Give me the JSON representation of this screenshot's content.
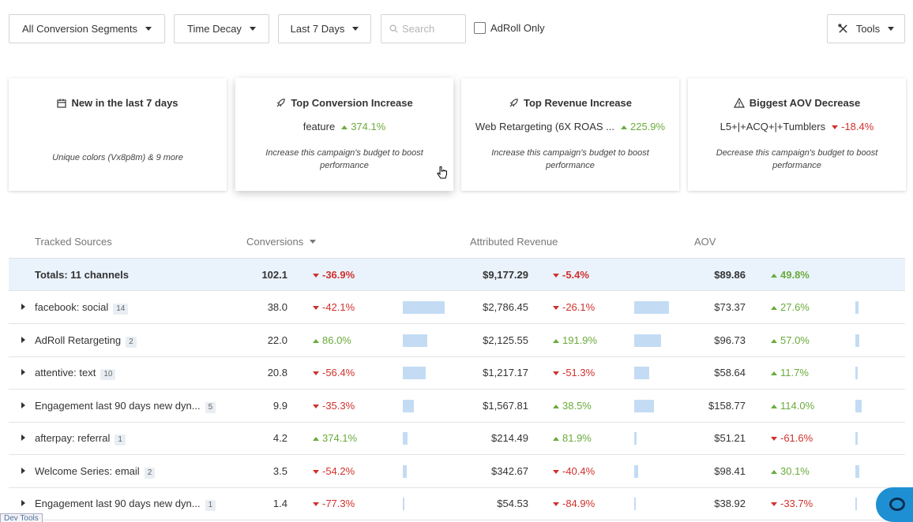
{
  "toolbar": {
    "segments": "All Conversion Segments",
    "model": "Time Decay",
    "range": "Last 7 Days",
    "search_placeholder": "Search",
    "adroll_only": "AdRoll Only",
    "tools": "Tools"
  },
  "cards": [
    {
      "title": "New in the last 7 days",
      "icon": "calendar-icon",
      "desc": "Unique colors (Vx8p8m) & 9 more"
    },
    {
      "title": "Top Conversion Increase",
      "icon": "rocket-icon",
      "subject": "feature",
      "change": "374.1%",
      "dir": "up",
      "desc": "Increase this campaign's budget to boost performance"
    },
    {
      "title": "Top Revenue Increase",
      "icon": "rocket-icon",
      "subject": "Web Retargeting (6X ROAS ...",
      "change": "225.9%",
      "dir": "up",
      "desc": "Increase this campaign's budget to boost performance"
    },
    {
      "title": "Biggest AOV Decrease",
      "icon": "warning-icon",
      "subject": "L5+|+ACQ+|+Tumblers",
      "change": "-18.4%",
      "dir": "down",
      "desc": "Decrease this campaign's budget to boost performance"
    }
  ],
  "table": {
    "headers": {
      "source": "Tracked Sources",
      "conversions": "Conversions",
      "revenue": "Attributed Revenue",
      "aov": "AOV"
    },
    "totals": {
      "label": "Totals: 11 channels",
      "conversions": "102.1",
      "conv_change": "-36.9%",
      "revenue": "$9,177.29",
      "rev_change": "-5.4%",
      "aov": "$89.86",
      "aov_change": "49.8%"
    },
    "rows": [
      {
        "name": "facebook: social",
        "count": "14",
        "conversions": "38.0",
        "conv_change": "-42.1%",
        "conv_dir": "down",
        "conv_share": 0.37,
        "revenue": "$2,786.45",
        "rev_change": "-26.1%",
        "rev_dir": "down",
        "rev_share": 0.3,
        "aov": "$73.37",
        "aov_change": "27.6%",
        "aov_dir": "up",
        "aov_share": 0.46
      },
      {
        "name": "AdRoll Retargeting",
        "count": "2",
        "conversions": "22.0",
        "conv_change": "86.0%",
        "conv_dir": "up",
        "conv_share": 0.22,
        "revenue": "$2,125.55",
        "rev_change": "191.9%",
        "rev_dir": "up",
        "rev_share": 0.23,
        "aov": "$96.73",
        "aov_change": "57.0%",
        "aov_dir": "up",
        "aov_share": 0.61
      },
      {
        "name": "attentive: text",
        "count": "10",
        "conversions": "20.8",
        "conv_change": "-56.4%",
        "conv_dir": "down",
        "conv_share": 0.2,
        "revenue": "$1,217.17",
        "rev_change": "-51.3%",
        "rev_dir": "down",
        "rev_share": 0.13,
        "aov": "$58.64",
        "aov_change": "11.7%",
        "aov_dir": "up",
        "aov_share": 0.37
      },
      {
        "name": "Engagement last 90 days new dyn...",
        "count": "5",
        "conversions": "9.9",
        "conv_change": "-35.3%",
        "conv_dir": "down",
        "conv_share": 0.097,
        "revenue": "$1,567.81",
        "rev_change": "38.5%",
        "rev_dir": "up",
        "rev_share": 0.17,
        "aov": "$158.77",
        "aov_change": "114.0%",
        "aov_dir": "up",
        "aov_share": 1.0
      },
      {
        "name": "afterpay: referral",
        "count": "1",
        "conversions": "4.2",
        "conv_change": "374.1%",
        "conv_dir": "up",
        "conv_share": 0.041,
        "revenue": "$214.49",
        "rev_change": "81.9%",
        "rev_dir": "up",
        "rev_share": 0.023,
        "aov": "$51.21",
        "aov_change": "-61.6%",
        "aov_dir": "down",
        "aov_share": 0.32
      },
      {
        "name": "Welcome Series: email",
        "count": "2",
        "conversions": "3.5",
        "conv_change": "-54.2%",
        "conv_dir": "down",
        "conv_share": 0.034,
        "revenue": "$342.67",
        "rev_change": "-40.4%",
        "rev_dir": "down",
        "rev_share": 0.037,
        "aov": "$98.41",
        "aov_change": "30.1%",
        "aov_dir": "up",
        "aov_share": 0.62
      },
      {
        "name": "Engagement last 90 days new dyn...",
        "count": "1",
        "conversions": "1.4",
        "conv_change": "-77.3%",
        "conv_dir": "down",
        "conv_share": 0.014,
        "revenue": "$54.53",
        "rev_change": "-84.9%",
        "rev_dir": "down",
        "rev_share": 0.006,
        "aov": "$38.92",
        "aov_change": "-33.7%",
        "aov_dir": "down",
        "aov_share": 0.25
      }
    ]
  },
  "devtools": "Dev Tools",
  "colors": {
    "up": "#6aab3a",
    "down": "#d0312d",
    "bar": "#c3dcf4",
    "totals_bg": "#eaf3fb",
    "chat": "#1e8fd3"
  }
}
